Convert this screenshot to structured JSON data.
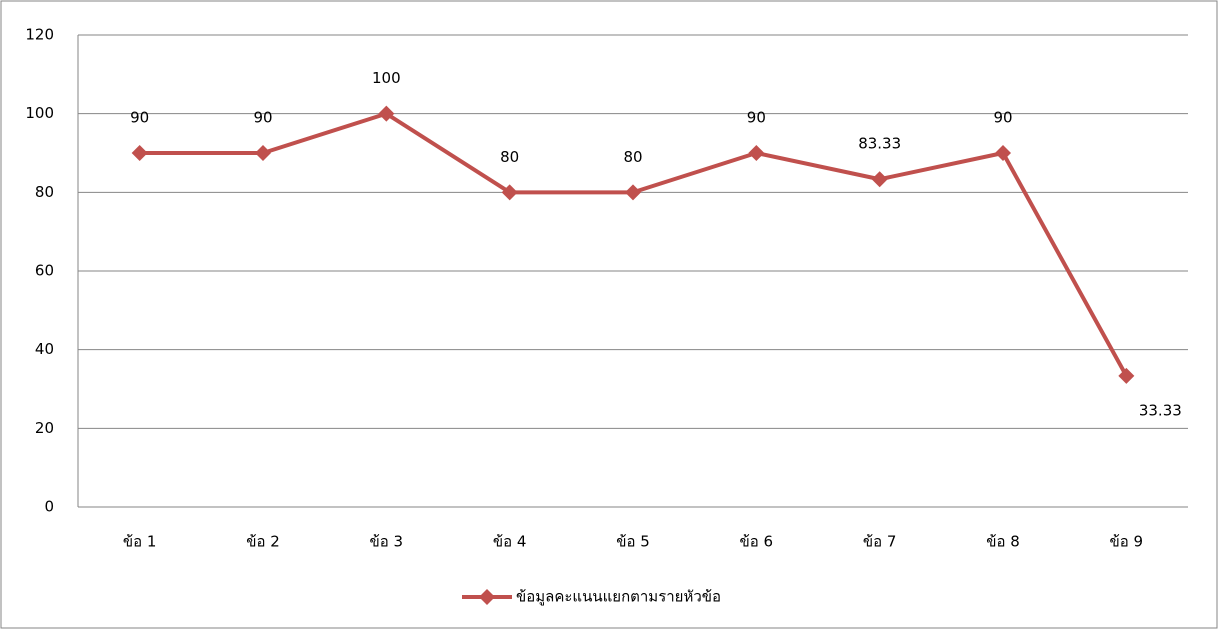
{
  "chart_data": {
    "type": "line",
    "categories": [
      "ข้อ 1",
      "ข้อ 2",
      "ข้อ 3",
      "ข้อ 4",
      "ข้อ 5",
      "ข้อ 6",
      "ข้อ 7",
      "ข้อ 8",
      "ข้อ 9"
    ],
    "series": [
      {
        "name": "ข้อมูลคะแนนแยกตามรายหัวข้อ",
        "color": "#c0504d",
        "values": [
          90,
          90,
          100,
          80,
          80,
          90,
          83.33,
          90,
          33.33
        ]
      }
    ],
    "ylim": [
      0,
      120
    ],
    "yticks": [
      0,
      20,
      40,
      60,
      80,
      100,
      120
    ],
    "grid": true,
    "legend": "bottom"
  }
}
